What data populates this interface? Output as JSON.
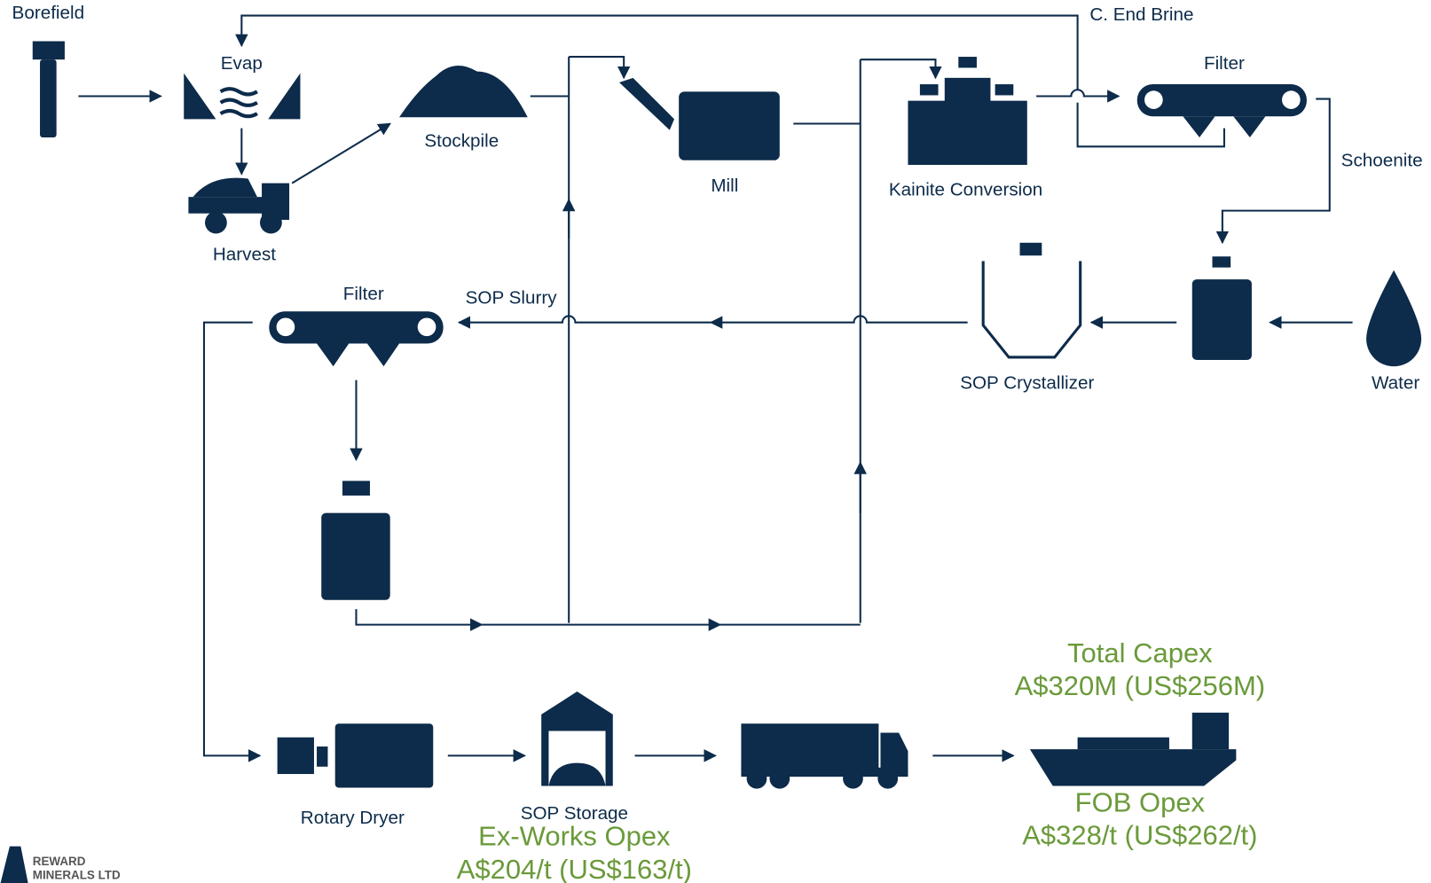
{
  "nodes": {
    "borefield": "Borefield",
    "evap": "Evap",
    "stockpile": "Stockpile",
    "harvest": "Harvest",
    "mill": "Mill",
    "kainite": "Kainite Conversion",
    "filter_top": "Filter",
    "crystallizer": "SOP Crystallizer",
    "water": "Water",
    "filter_left": "Filter",
    "dryer": "Rotary Dryer",
    "storage": "SOP Storage"
  },
  "flows": {
    "end_brine": "C. End Brine",
    "schoenite": "Schoenite",
    "slurry": "SOP Slurry"
  },
  "costs": {
    "capex_title": "Total Capex",
    "capex_value": "A$320M (US$256M)",
    "fob_title": "FOB Opex",
    "fob_value": "A$328/t (US$262/t)",
    "exworks_title": "Ex-Works Opex",
    "exworks_value": "A$204/t (US$163/t)"
  },
  "logo": {
    "line1": "REWARD",
    "line2": "MINERALS LTD"
  }
}
